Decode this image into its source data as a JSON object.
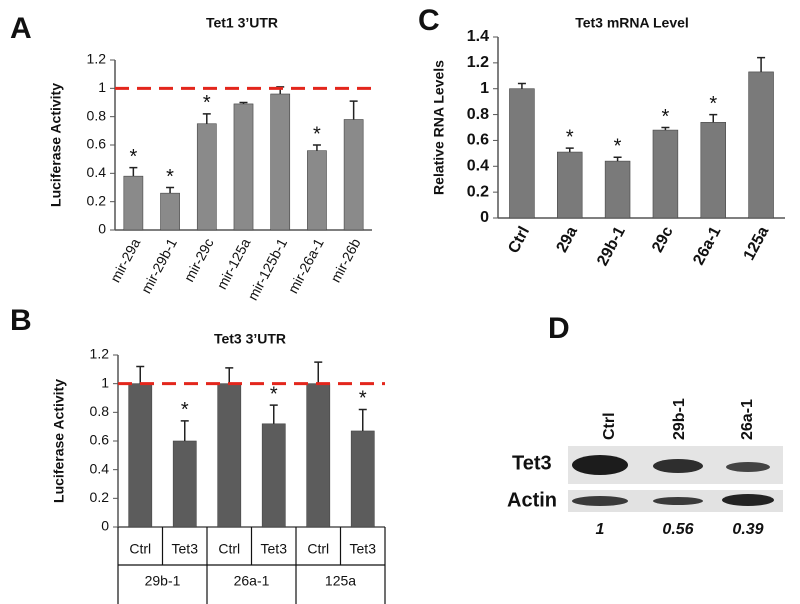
{
  "chart_data": [
    {
      "type": "bar",
      "panel": "A",
      "title": "Tet1 3’UTR",
      "ylabel": "Luciferase Activity",
      "categories": [
        "mir-29a",
        "mir-29b-1",
        "mir-29c",
        "mir-125a",
        "mir-125b-1",
        "mir-26a-1",
        "mir-26b"
      ],
      "values": [
        0.38,
        0.26,
        0.75,
        0.89,
        0.96,
        0.56,
        0.78
      ],
      "errors": [
        0.06,
        0.04,
        0.07,
        0.01,
        0.05,
        0.04,
        0.13
      ],
      "significance": [
        "*",
        "*",
        "*",
        null,
        null,
        "*",
        null
      ],
      "color": "#8a8a8a",
      "ylim": [
        0,
        1.2
      ],
      "yticks": [
        0,
        0.2,
        0.4,
        0.6,
        0.8,
        1,
        1.2
      ],
      "reference_line": {
        "value": 1,
        "color": "#e3261c"
      }
    },
    {
      "type": "bar",
      "panel": "B",
      "title": "Tet3 3’UTR",
      "ylabel": "Luciferase Activity",
      "categories": [
        "Ctrl",
        "Tet3",
        "Ctrl",
        "Tet3",
        "Ctrl",
        "Tet3"
      ],
      "groups": [
        "29b-1",
        "26a-1",
        "125a"
      ],
      "values": [
        1,
        0.6,
        1,
        0.72,
        1,
        0.67
      ],
      "errors": [
        0.12,
        0.14,
        0.11,
        0.13,
        0.15,
        0.15
      ],
      "significance": [
        null,
        "*",
        null,
        "*",
        null,
        "*"
      ],
      "color": "#5c5c5c",
      "ylim": [
        0,
        1.2
      ],
      "yticks": [
        0,
        0.2,
        0.4,
        0.6,
        0.8,
        1,
        1.2
      ],
      "reference_line": {
        "value": 1,
        "color": "#e3261c"
      }
    },
    {
      "type": "bar",
      "panel": "C",
      "title": "Tet3 mRNA Level",
      "ylabel": "Relative RNA Levels",
      "categories": [
        "Ctrl",
        "29a",
        "29b-1",
        "29c",
        "26a-1",
        "125a"
      ],
      "values": [
        1,
        0.51,
        0.44,
        0.68,
        0.74,
        1.13
      ],
      "errors": [
        0.04,
        0.03,
        0.03,
        0.02,
        0.06,
        0.11
      ],
      "significance": [
        null,
        "*",
        "*",
        "*",
        "*",
        null
      ],
      "color": "#7a7a7a",
      "ylim": [
        0,
        1.4
      ],
      "yticks": [
        0,
        0.2,
        0.4,
        0.6,
        0.8,
        1,
        1.2,
        1.4
      ]
    }
  ],
  "blot": {
    "panel": "D",
    "lanes": [
      "Ctrl",
      "29b-1",
      "26a-1"
    ],
    "rows": [
      "Tet3",
      "Actin"
    ],
    "quantification": [
      1,
      0.56,
      0.39
    ]
  }
}
